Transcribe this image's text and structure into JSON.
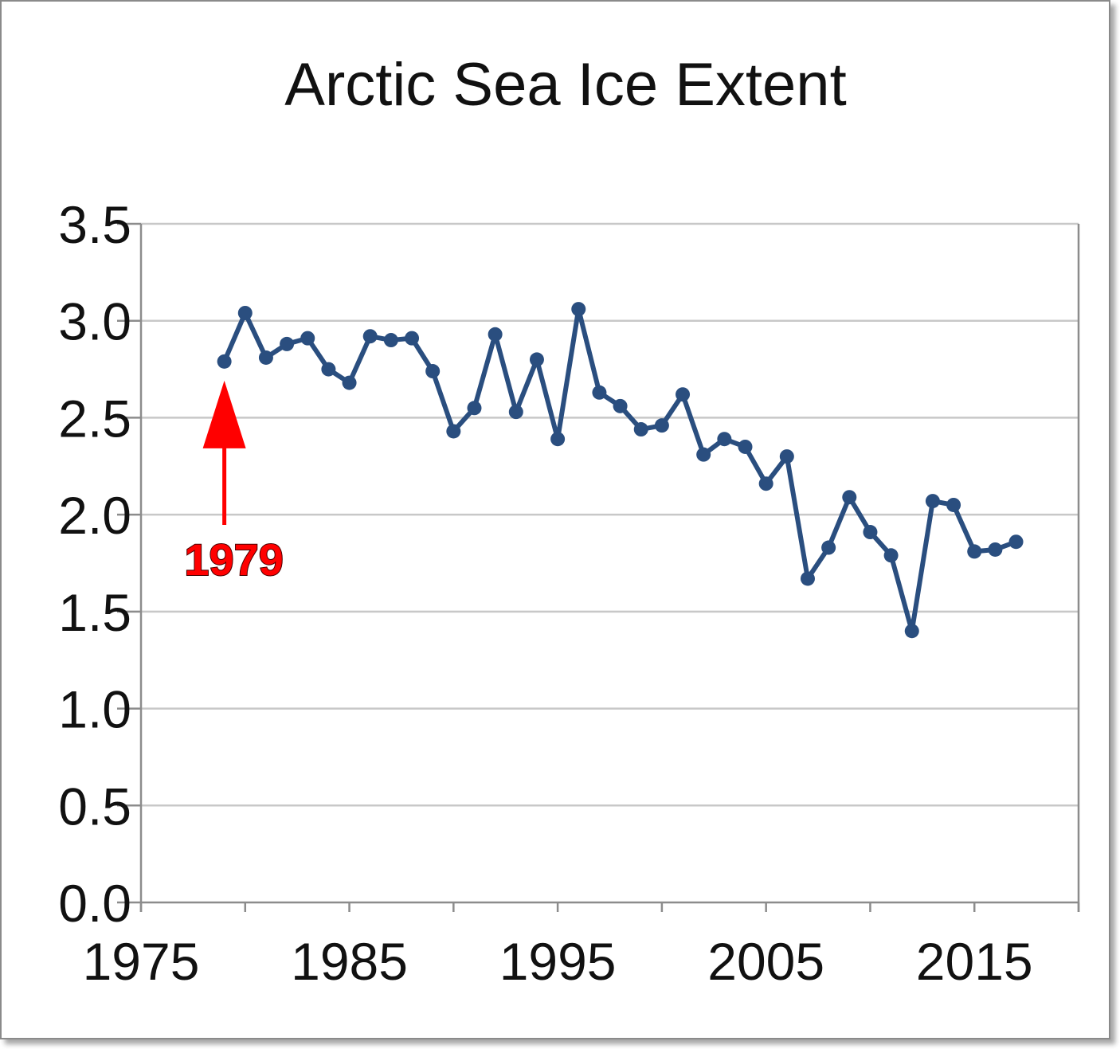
{
  "colors": {
    "series": "#2a4e7f",
    "grid": "#c8c8c8",
    "axis": "#8c8c8c",
    "annotation": "#ff0000"
  },
  "chart_data": {
    "type": "line",
    "title": "Arctic Sea Ice Extent",
    "xlabel": "",
    "ylabel": "",
    "xlim": [
      1975,
      2020
    ],
    "ylim": [
      0,
      3.5
    ],
    "x_ticks": [
      "1975",
      "1985",
      "1995",
      "2005",
      "2015"
    ],
    "y_ticks": [
      "0.0",
      "0.5",
      "1.0",
      "1.5",
      "2.0",
      "2.5",
      "3.0",
      "3.5"
    ],
    "grid": "horizontal",
    "legend": "none",
    "series": [
      {
        "x": [
          1979,
          1980,
          1981,
          1982,
          1983,
          1984,
          1985,
          1986,
          1987,
          1988,
          1989,
          1990,
          1991,
          1992,
          1993,
          1994,
          1995,
          1996,
          1997,
          1998,
          1999,
          2000,
          2001,
          2002,
          2003,
          2004,
          2005,
          2006,
          2007,
          2008,
          2009,
          2010,
          2011,
          2012,
          2013,
          2014,
          2015,
          2016,
          2017
        ],
        "values": [
          2.79,
          3.04,
          2.81,
          2.88,
          2.91,
          2.75,
          2.68,
          2.92,
          2.9,
          2.91,
          2.74,
          2.43,
          2.55,
          2.93,
          2.53,
          2.8,
          2.39,
          3.06,
          2.63,
          2.56,
          2.44,
          2.46,
          2.62,
          2.31,
          2.39,
          2.35,
          2.16,
          2.3,
          1.67,
          1.83,
          2.09,
          1.91,
          1.79,
          1.4,
          2.07,
          2.05,
          1.81,
          1.82,
          1.86
        ]
      }
    ],
    "annotation": {
      "text": "1979",
      "x": 1979,
      "y": 2.79
    }
  }
}
